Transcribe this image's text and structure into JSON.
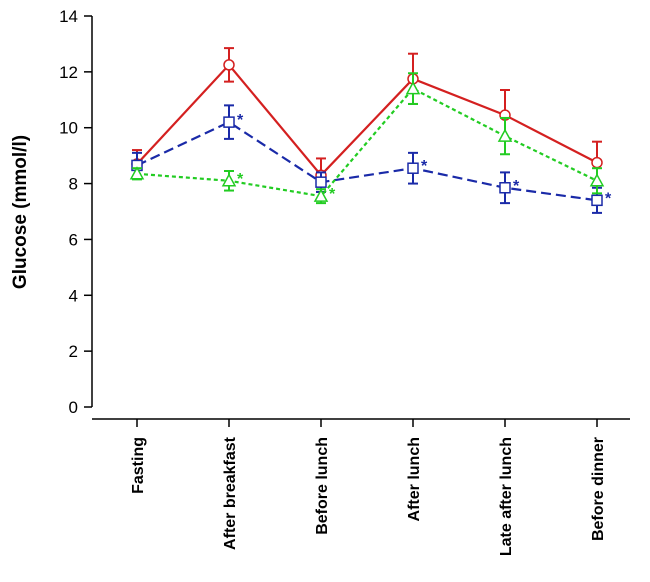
{
  "chart_data": {
    "type": "line",
    "title": "",
    "xlabel": "",
    "ylabel": "Glucose (mmol/l)",
    "ylim": [
      0,
      14
    ],
    "yticks": [
      0,
      2,
      4,
      6,
      8,
      10,
      12,
      14
    ],
    "grid": false,
    "categories": [
      "Fasting",
      "After breakfast",
      "Before lunch",
      "After lunch",
      "Late after lunch",
      "Before dinner"
    ],
    "series": [
      {
        "name": "red",
        "color": "#d42020",
        "line": "solid",
        "marker": "circle",
        "values": [
          8.7,
          12.25,
          8.3,
          11.75,
          10.45,
          8.75
        ],
        "err_low": [
          0.5,
          0.6,
          0.6,
          0.9,
          0.9,
          0.75
        ],
        "err_high": [
          0.5,
          0.6,
          0.6,
          0.9,
          0.9,
          0.75
        ],
        "stars": [
          false,
          false,
          false,
          false,
          false,
          false
        ]
      },
      {
        "name": "blue",
        "color": "#1a2aa8",
        "line": "dashed",
        "marker": "square",
        "values": [
          8.65,
          10.2,
          8.05,
          8.55,
          7.85,
          7.4
        ],
        "err_low": [
          0.45,
          0.6,
          0.35,
          0.55,
          0.55,
          0.45
        ],
        "err_high": [
          0.45,
          0.6,
          0.35,
          0.55,
          0.55,
          0.45
        ],
        "stars": [
          false,
          true,
          false,
          true,
          true,
          true
        ]
      },
      {
        "name": "green",
        "color": "#22cc22",
        "line": "dotted",
        "marker": "triangle",
        "values": [
          8.35,
          8.1,
          7.55,
          11.4,
          9.7,
          8.1
        ],
        "err_low": [
          0.2,
          0.35,
          0.25,
          0.55,
          0.65,
          0.45
        ],
        "err_high": [
          0.2,
          0.35,
          0.25,
          0.55,
          0.65,
          0.45
        ],
        "stars": [
          false,
          true,
          true,
          false,
          false,
          false
        ]
      }
    ]
  }
}
